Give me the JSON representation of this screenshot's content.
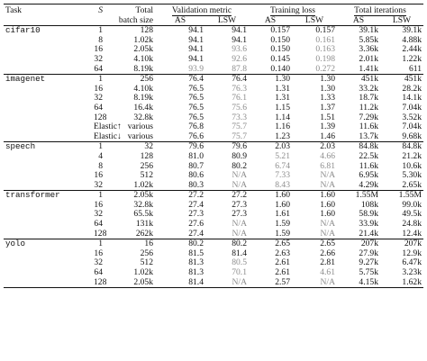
{
  "header": {
    "task": "Task",
    "s": "S",
    "batch": [
      "Total",
      "batch size"
    ],
    "val_metric": "Validation metric",
    "train_loss": "Training loss",
    "total_iter": "Total iterations",
    "as": "AS",
    "lsw": "LSW"
  },
  "tasks": [
    {
      "name": "cifar10",
      "rows": [
        {
          "s": "1",
          "batch": "128",
          "v_as": "94.1",
          "v_lsw": "94.1",
          "t_as": "0.157",
          "t_lsw": "0.157",
          "i_as": "39.1k",
          "i_lsw": "39.1k",
          "gray": []
        },
        {
          "s": "8",
          "batch": "1.02k",
          "v_as": "94.1",
          "v_lsw": "94.1",
          "t_as": "0.150",
          "t_lsw": "0.161",
          "i_as": "5.85k",
          "i_lsw": "4.88k",
          "gray": [
            "t_lsw"
          ]
        },
        {
          "s": "16",
          "batch": "2.05k",
          "v_as": "94.1",
          "v_lsw": "93.6",
          "t_as": "0.150",
          "t_lsw": "0.163",
          "i_as": "3.36k",
          "i_lsw": "2.44k",
          "gray": [
            "v_lsw",
            "t_lsw"
          ]
        },
        {
          "s": "32",
          "batch": "4.10k",
          "v_as": "94.1",
          "v_lsw": "92.6",
          "t_as": "0.145",
          "t_lsw": "0.198",
          "i_as": "2.01k",
          "i_lsw": "1.22k",
          "gray": [
            "v_lsw",
            "t_lsw"
          ]
        },
        {
          "s": "64",
          "batch": "8.19k",
          "v_as": "93.9",
          "v_lsw": "87.8",
          "t_as": "0.140",
          "t_lsw": "0.272",
          "i_as": "1.41k",
          "i_lsw": "611",
          "gray": [
            "v_as",
            "v_lsw",
            "t_lsw"
          ]
        }
      ]
    },
    {
      "name": "imagenet",
      "rows": [
        {
          "s": "1",
          "batch": "256",
          "v_as": "76.4",
          "v_lsw": "76.4",
          "t_as": "1.30",
          "t_lsw": "1.30",
          "i_as": "451k",
          "i_lsw": "451k",
          "gray": []
        },
        {
          "s": "16",
          "batch": "4.10k",
          "v_as": "76.5",
          "v_lsw": "76.3",
          "t_as": "1.31",
          "t_lsw": "1.30",
          "i_as": "33.2k",
          "i_lsw": "28.2k",
          "gray": [
            "v_lsw"
          ]
        },
        {
          "s": "32",
          "batch": "8.19k",
          "v_as": "76.5",
          "v_lsw": "76.1",
          "t_as": "1.31",
          "t_lsw": "1.33",
          "i_as": "18.7k",
          "i_lsw": "14.1k",
          "gray": [
            "v_lsw"
          ]
        },
        {
          "s": "64",
          "batch": "16.4k",
          "v_as": "76.5",
          "v_lsw": "75.6",
          "t_as": "1.15",
          "t_lsw": "1.37",
          "i_as": "11.2k",
          "i_lsw": "7.04k",
          "gray": [
            "v_lsw"
          ]
        },
        {
          "s": "128",
          "batch": "32.8k",
          "v_as": "76.5",
          "v_lsw": "73.3",
          "t_as": "1.14",
          "t_lsw": "1.51",
          "i_as": "7.29k",
          "i_lsw": "3.52k",
          "gray": [
            "v_lsw"
          ]
        },
        {
          "s": "Elastic↑",
          "batch": "various",
          "v_as": "76.8",
          "v_lsw": "75.7",
          "t_as": "1.16",
          "t_lsw": "1.39",
          "i_as": "11.6k",
          "i_lsw": "7.04k",
          "gray": [
            "v_lsw"
          ]
        },
        {
          "s": "Elastic↓",
          "batch": "various",
          "v_as": "76.6",
          "v_lsw": "75.7",
          "t_as": "1.23",
          "t_lsw": "1.46",
          "i_as": "13.7k",
          "i_lsw": "9.68k",
          "gray": [
            "v_lsw"
          ]
        }
      ]
    },
    {
      "name": "speech",
      "rows": [
        {
          "s": "1",
          "batch": "32",
          "v_as": "79.6",
          "v_lsw": "79.6",
          "t_as": "2.03",
          "t_lsw": "2.03",
          "i_as": "84.8k",
          "i_lsw": "84.8k",
          "gray": []
        },
        {
          "s": "4",
          "batch": "128",
          "v_as": "81.0",
          "v_lsw": "80.9",
          "t_as": "5.21",
          "t_lsw": "4.66",
          "i_as": "22.5k",
          "i_lsw": "21.2k",
          "gray": [
            "t_as",
            "t_lsw"
          ]
        },
        {
          "s": "8",
          "batch": "256",
          "v_as": "80.7",
          "v_lsw": "80.2",
          "t_as": "6.74",
          "t_lsw": "6.81",
          "i_as": "11.6k",
          "i_lsw": "10.6k",
          "gray": [
            "t_as",
            "t_lsw"
          ]
        },
        {
          "s": "16",
          "batch": "512",
          "v_as": "80.6",
          "v_lsw": "N/A",
          "t_as": "7.33",
          "t_lsw": "N/A",
          "i_as": "6.95k",
          "i_lsw": "5.30k",
          "gray": [
            "v_lsw",
            "t_as",
            "t_lsw"
          ]
        },
        {
          "s": "32",
          "batch": "1.02k",
          "v_as": "80.3",
          "v_lsw": "N/A",
          "t_as": "8.43",
          "t_lsw": "N/A",
          "i_as": "4.29k",
          "i_lsw": "2.65k",
          "gray": [
            "v_lsw",
            "t_as",
            "t_lsw"
          ]
        }
      ]
    },
    {
      "name": "transformer",
      "rows": [
        {
          "s": "1",
          "batch": "2.05k",
          "v_as": "27.2",
          "v_lsw": "27.2",
          "t_as": "1.60",
          "t_lsw": "1.60",
          "i_as": "1.55M",
          "i_lsw": "1.55M",
          "gray": []
        },
        {
          "s": "16",
          "batch": "32.8k",
          "v_as": "27.4",
          "v_lsw": "27.3",
          "t_as": "1.60",
          "t_lsw": "1.60",
          "i_as": "108k",
          "i_lsw": "99.0k",
          "gray": []
        },
        {
          "s": "32",
          "batch": "65.5k",
          "v_as": "27.3",
          "v_lsw": "27.3",
          "t_as": "1.61",
          "t_lsw": "1.60",
          "i_as": "58.9k",
          "i_lsw": "49.5k",
          "gray": []
        },
        {
          "s": "64",
          "batch": "131k",
          "v_as": "27.6",
          "v_lsw": "N/A",
          "t_as": "1.59",
          "t_lsw": "N/A",
          "i_as": "33.9k",
          "i_lsw": "24.8k",
          "gray": [
            "v_lsw",
            "t_lsw"
          ]
        },
        {
          "s": "128",
          "batch": "262k",
          "v_as": "27.4",
          "v_lsw": "N/A",
          "t_as": "1.59",
          "t_lsw": "N/A",
          "i_as": "21.4k",
          "i_lsw": "12.4k",
          "gray": [
            "v_lsw",
            "t_lsw"
          ]
        }
      ]
    },
    {
      "name": "yolo",
      "rows": [
        {
          "s": "1",
          "batch": "16",
          "v_as": "80.2",
          "v_lsw": "80.2",
          "t_as": "2.65",
          "t_lsw": "2.65",
          "i_as": "207k",
          "i_lsw": "207k",
          "gray": []
        },
        {
          "s": "16",
          "batch": "256",
          "v_as": "81.5",
          "v_lsw": "81.4",
          "t_as": "2.63",
          "t_lsw": "2.66",
          "i_as": "27.9k",
          "i_lsw": "12.9k",
          "gray": []
        },
        {
          "s": "32",
          "batch": "512",
          "v_as": "81.3",
          "v_lsw": "80.5",
          "t_as": "2.61",
          "t_lsw": "2.81",
          "i_as": "9.27k",
          "i_lsw": "6.47k",
          "gray": [
            "v_lsw"
          ]
        },
        {
          "s": "64",
          "batch": "1.02k",
          "v_as": "81.3",
          "v_lsw": "70.1",
          "t_as": "2.61",
          "t_lsw": "4.61",
          "i_as": "5.75k",
          "i_lsw": "3.23k",
          "gray": [
            "v_lsw",
            "t_lsw"
          ]
        },
        {
          "s": "128",
          "batch": "2.05k",
          "v_as": "81.4",
          "v_lsw": "N/A",
          "t_as": "2.57",
          "t_lsw": "N/A",
          "i_as": "4.15k",
          "i_lsw": "1.62k",
          "gray": [
            "v_lsw",
            "t_lsw"
          ]
        }
      ]
    }
  ]
}
